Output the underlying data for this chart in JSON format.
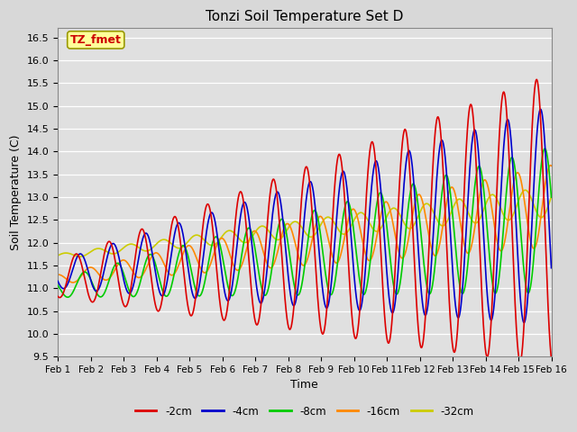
{
  "title": "Tonzi Soil Temperature Set D",
  "xlabel": "Time",
  "ylabel": "Soil Temperature (C)",
  "ylim": [
    9.5,
    16.7
  ],
  "xlim": [
    0,
    15
  ],
  "xtick_labels": [
    "Feb 1",
    "Feb 2",
    "Feb 3",
    "Feb 4",
    "Feb 5",
    "Feb 6",
    "Feb 7",
    "Feb 8",
    "Feb 9",
    "Feb 10",
    "Feb 11",
    "Feb 12",
    "Feb 13",
    "Feb 14",
    "Feb 15",
    "Feb 16"
  ],
  "legend_labels": [
    "-2cm",
    "-4cm",
    "-8cm",
    "-16cm",
    "-32cm"
  ],
  "legend_colors": [
    "#dd0000",
    "#0000cc",
    "#00cc00",
    "#ff8800",
    "#cccc00"
  ],
  "fig_bg": "#d8d8d8",
  "plot_bg": "#e0e0e0",
  "annotation_text": "TZ_fmet",
  "annotation_bg": "#ffff99",
  "annotation_border": "#999900",
  "annotation_textcolor": "#cc0000",
  "grid_color": "#ffffff"
}
